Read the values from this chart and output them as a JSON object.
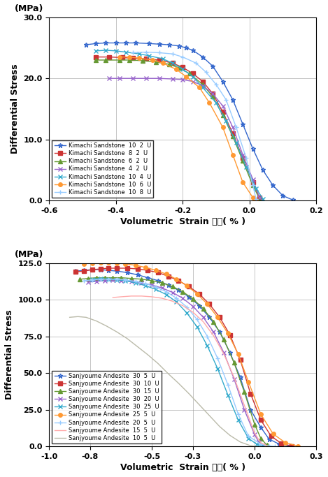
{
  "top_chart": {
    "xlabel": "Volumetric  Strain 　　( % )",
    "ylabel": "Differential Stress",
    "ylabel2": "(MPa)",
    "xlim": [
      -0.6,
      0.2
    ],
    "ylim": [
      0.0,
      30.0
    ],
    "xticks": [
      -0.6,
      -0.4,
      -0.2,
      0.0,
      0.2
    ],
    "yticks": [
      0.0,
      10.0,
      20.0,
      30.0
    ],
    "series": [
      {
        "label": "Kimachi Sandstone  10  2  U",
        "color": "#3366CC",
        "marker": "*",
        "markersize": 5,
        "x": [
          -0.49,
          -0.46,
          -0.43,
          -0.4,
          -0.37,
          -0.34,
          -0.3,
          -0.27,
          -0.24,
          -0.21,
          -0.19,
          -0.17,
          -0.14,
          -0.11,
          -0.08,
          -0.05,
          -0.02,
          0.01,
          0.04,
          0.07,
          0.1,
          0.13
        ],
        "y": [
          25.5,
          25.7,
          25.8,
          25.8,
          25.8,
          25.8,
          25.7,
          25.6,
          25.5,
          25.3,
          25.0,
          24.6,
          23.5,
          22.0,
          19.5,
          16.5,
          12.5,
          8.5,
          5.0,
          2.5,
          0.8,
          0.1
        ]
      },
      {
        "label": "Kimachi Sandstone  8  2  U",
        "color": "#CC3333",
        "marker": "s",
        "markersize": 4,
        "x": [
          -0.46,
          -0.42,
          -0.38,
          -0.35,
          -0.31,
          -0.27,
          -0.23,
          -0.2,
          -0.17,
          -0.14,
          -0.11,
          -0.08,
          -0.05,
          -0.02,
          0.01,
          0.03
        ],
        "y": [
          23.5,
          23.5,
          23.4,
          23.3,
          23.2,
          23.0,
          22.5,
          21.8,
          20.8,
          19.5,
          17.5,
          14.5,
          11.0,
          7.0,
          3.0,
          0.5
        ]
      },
      {
        "label": "Kimachi Sandstone  6  2  U",
        "color": "#669933",
        "marker": "^",
        "markersize": 4,
        "x": [
          -0.46,
          -0.43,
          -0.39,
          -0.36,
          -0.32,
          -0.28,
          -0.24,
          -0.21,
          -0.18,
          -0.14,
          -0.11,
          -0.08,
          -0.05,
          -0.02,
          0.01,
          0.03
        ],
        "y": [
          23.0,
          23.0,
          23.0,
          23.0,
          22.9,
          22.7,
          22.3,
          21.7,
          20.8,
          19.0,
          17.0,
          14.0,
          10.5,
          6.5,
          2.5,
          0.3
        ]
      },
      {
        "label": "Kimachi Sandstone  4  2  U",
        "color": "#9966CC",
        "marker": "x",
        "markersize": 5,
        "x": [
          -0.42,
          -0.39,
          -0.35,
          -0.31,
          -0.27,
          -0.23,
          -0.2,
          -0.17,
          -0.14,
          -0.11,
          -0.08,
          -0.05,
          -0.02,
          0.01,
          0.03
        ],
        "y": [
          20.0,
          20.0,
          20.0,
          20.0,
          20.0,
          19.9,
          19.8,
          19.5,
          18.8,
          17.5,
          15.5,
          12.0,
          7.5,
          3.5,
          0.5
        ]
      },
      {
        "label": "Kimachi Sandstone  10  4  U",
        "color": "#33AACC",
        "marker": "x",
        "markersize": 5,
        "x": [
          -0.46,
          -0.43,
          -0.4,
          -0.37,
          -0.33,
          -0.3,
          -0.26,
          -0.23,
          -0.2,
          -0.17,
          -0.14,
          -0.1,
          -0.07,
          -0.04,
          -0.01,
          0.02,
          0.04
        ],
        "y": [
          24.5,
          24.6,
          24.5,
          24.3,
          24.0,
          23.7,
          23.2,
          22.5,
          21.5,
          20.3,
          18.5,
          16.0,
          13.0,
          9.5,
          5.5,
          2.0,
          0.3
        ]
      },
      {
        "label": "Kimachi Sandstone  10  6  U",
        "color": "#FF9933",
        "marker": "o",
        "markersize": 4,
        "x": [
          -0.39,
          -0.36,
          -0.33,
          -0.29,
          -0.26,
          -0.22,
          -0.19,
          -0.15,
          -0.12,
          -0.08,
          -0.05,
          -0.02,
          0.01,
          0.02
        ],
        "y": [
          23.5,
          23.5,
          23.3,
          23.0,
          22.5,
          21.5,
          20.3,
          18.5,
          16.0,
          12.0,
          7.5,
          3.0,
          0.5,
          0.0
        ]
      },
      {
        "label": "Kimachi Sandstone  10  8  U",
        "color": "#99CCFF",
        "marker": "+",
        "markersize": 5,
        "x": [
          -0.35,
          -0.31,
          -0.27,
          -0.23,
          -0.2,
          -0.16,
          -0.13,
          -0.1,
          -0.07,
          -0.04,
          -0.01,
          0.01,
          0.02
        ],
        "y": [
          24.2,
          24.3,
          24.2,
          24.0,
          23.5,
          22.5,
          21.0,
          19.0,
          16.5,
          12.0,
          7.0,
          2.5,
          0.2
        ]
      }
    ]
  },
  "bottom_chart": {
    "xlabel": "Volumetric  Strain 　　( % )",
    "ylabel": "Differential Stress",
    "ylabel2": "(MPa)",
    "xlim": [
      -1.0,
      0.3
    ],
    "ylim": [
      0.0,
      125.0
    ],
    "xticks": [
      -1.0,
      -0.8,
      -0.5,
      -0.3,
      0.0,
      0.3
    ],
    "yticks": [
      0.0,
      25.0,
      50.0,
      75.0,
      100.0,
      125.0
    ],
    "series": [
      {
        "label": "Sanjyoume Andesite  30  5  U",
        "color": "#3366CC",
        "marker": "*",
        "markersize": 5,
        "x": [
          -0.87,
          -0.83,
          -0.79,
          -0.75,
          -0.71,
          -0.67,
          -0.62,
          -0.57,
          -0.52,
          -0.47,
          -0.42,
          -0.37,
          -0.32,
          -0.27,
          -0.22,
          -0.17,
          -0.12,
          -0.07,
          -0.02,
          0.03,
          0.07,
          0.12,
          0.17
        ],
        "y": [
          119.5,
          120.0,
          120.5,
          120.5,
          120.0,
          119.5,
          118.5,
          117.0,
          115.0,
          113.0,
          110.0,
          106.5,
          102.0,
          96.0,
          88.0,
          78.0,
          64.0,
          47.0,
          25.0,
          13.0,
          5.0,
          1.5,
          0.2
        ]
      },
      {
        "label": "Sanjyoume Andesite  30  10  U",
        "color": "#CC3333",
        "marker": "s",
        "markersize": 4,
        "x": [
          -0.87,
          -0.83,
          -0.79,
          -0.75,
          -0.71,
          -0.67,
          -0.62,
          -0.57,
          -0.52,
          -0.47,
          -0.42,
          -0.37,
          -0.32,
          -0.27,
          -0.22,
          -0.17,
          -0.12,
          -0.07,
          -0.02,
          0.03,
          0.08,
          0.13,
          0.18
        ],
        "y": [
          119.0,
          119.5,
          120.5,
          121.0,
          121.5,
          121.5,
          121.5,
          121.0,
          120.0,
          118.5,
          116.0,
          113.0,
          109.0,
          104.0,
          97.0,
          88.0,
          76.0,
          59.0,
          36.0,
          18.0,
          7.0,
          2.0,
          0.3
        ]
      },
      {
        "label": "Sanjyoume Andesite  30  15  U",
        "color": "#669933",
        "marker": "^",
        "markersize": 4,
        "x": [
          -0.85,
          -0.81,
          -0.77,
          -0.73,
          -0.69,
          -0.65,
          -0.6,
          -0.55,
          -0.5,
          -0.45,
          -0.4,
          -0.35,
          -0.3,
          -0.25,
          -0.2,
          -0.15,
          -0.1,
          -0.05,
          0.0,
          0.03,
          0.06
        ],
        "y": [
          114.0,
          114.5,
          115.0,
          115.0,
          115.0,
          115.0,
          114.5,
          114.0,
          113.0,
          111.5,
          109.0,
          105.5,
          100.5,
          94.0,
          85.0,
          73.0,
          57.0,
          37.0,
          15.0,
          5.5,
          0.8
        ]
      },
      {
        "label": "Sanjyoume Andesite  30  20  U",
        "color": "#9966CC",
        "marker": "x",
        "markersize": 5,
        "x": [
          -0.81,
          -0.77,
          -0.73,
          -0.69,
          -0.65,
          -0.6,
          -0.55,
          -0.5,
          -0.45,
          -0.4,
          -0.35,
          -0.3,
          -0.25,
          -0.2,
          -0.15,
          -0.1,
          -0.05,
          0.0,
          0.02,
          0.04
        ],
        "y": [
          112.0,
          112.5,
          113.0,
          113.5,
          113.0,
          112.5,
          111.5,
          110.0,
          108.0,
          105.0,
          101.0,
          95.5,
          88.0,
          78.0,
          64.0,
          46.0,
          25.0,
          8.0,
          3.0,
          0.5
        ]
      },
      {
        "label": "Sanjyoume Andesite  30  25  U",
        "color": "#33AACC",
        "marker": "x",
        "markersize": 5,
        "x": [
          -0.79,
          -0.75,
          -0.71,
          -0.67,
          -0.63,
          -0.58,
          -0.53,
          -0.48,
          -0.43,
          -0.38,
          -0.33,
          -0.28,
          -0.23,
          -0.18,
          -0.13,
          -0.08,
          -0.03,
          0.01,
          0.04
        ],
        "y": [
          114.0,
          114.5,
          114.0,
          113.5,
          113.0,
          111.5,
          109.5,
          107.0,
          103.5,
          98.5,
          91.0,
          81.5,
          68.5,
          53.0,
          35.0,
          18.0,
          5.5,
          1.5,
          0.2
        ]
      },
      {
        "label": "Sanjyoume Andesite  25  5  U",
        "color": "#FF9933",
        "marker": "o",
        "markersize": 4,
        "x": [
          -0.83,
          -0.79,
          -0.75,
          -0.71,
          -0.67,
          -0.63,
          -0.58,
          -0.53,
          -0.48,
          -0.43,
          -0.38,
          -0.33,
          -0.28,
          -0.23,
          -0.18,
          -0.13,
          -0.08,
          -0.03,
          0.03,
          0.09,
          0.15,
          0.21
        ],
        "y": [
          124.5,
          125.0,
          125.5,
          125.5,
          125.0,
          124.5,
          123.5,
          122.0,
          120.0,
          117.5,
          114.0,
          109.5,
          104.0,
          97.0,
          88.0,
          77.0,
          63.0,
          44.0,
          22.0,
          8.5,
          2.5,
          0.3
        ]
      },
      {
        "label": "Sanjyoume Andesite  20  5  U",
        "color": "#99CCFF",
        "marker": "+",
        "markersize": 5,
        "x": [
          -0.83,
          -0.79,
          -0.75,
          -0.71,
          -0.67,
          -0.63,
          -0.58,
          -0.53,
          -0.48,
          -0.43,
          -0.38,
          -0.33,
          -0.28,
          -0.23,
          -0.18,
          -0.13,
          -0.08,
          -0.03,
          0.03,
          0.07,
          0.1
        ],
        "y": [
          113.0,
          113.5,
          114.0,
          114.0,
          114.0,
          113.5,
          112.5,
          111.0,
          108.5,
          105.5,
          101.0,
          95.0,
          86.5,
          75.0,
          60.0,
          42.0,
          22.0,
          7.0,
          1.5,
          0.3,
          0.0
        ]
      },
      {
        "label": "Sanjyoume Andesite  15  5  U",
        "color": "#FFAAAA",
        "marker": "None",
        "markersize": 4,
        "x": [
          -0.69,
          -0.65,
          -0.6,
          -0.55,
          -0.5,
          -0.45,
          -0.4,
          -0.35,
          -0.3,
          -0.25,
          -0.2,
          -0.15,
          -0.1,
          -0.05,
          0.0,
          0.03,
          0.06
        ],
        "y": [
          101.5,
          102.0,
          102.5,
          102.5,
          102.0,
          101.0,
          99.0,
          96.0,
          91.5,
          85.0,
          75.5,
          63.0,
          47.0,
          28.0,
          9.0,
          2.5,
          0.5
        ]
      },
      {
        "label": "Sanjyoume Andesite  10  5  U",
        "color": "#BBBBAA",
        "marker": "None",
        "markersize": 4,
        "x": [
          -0.9,
          -0.86,
          -0.82,
          -0.77,
          -0.72,
          -0.67,
          -0.62,
          -0.57,
          -0.52,
          -0.47,
          -0.42,
          -0.37,
          -0.32,
          -0.27,
          -0.22,
          -0.17,
          -0.12,
          -0.07,
          -0.02,
          0.01
        ],
        "y": [
          88.0,
          88.5,
          88.0,
          85.5,
          82.0,
          78.0,
          73.5,
          68.0,
          62.5,
          56.5,
          49.5,
          43.0,
          36.0,
          28.5,
          21.0,
          13.5,
          7.5,
          3.0,
          0.5,
          0.0
        ]
      }
    ]
  }
}
